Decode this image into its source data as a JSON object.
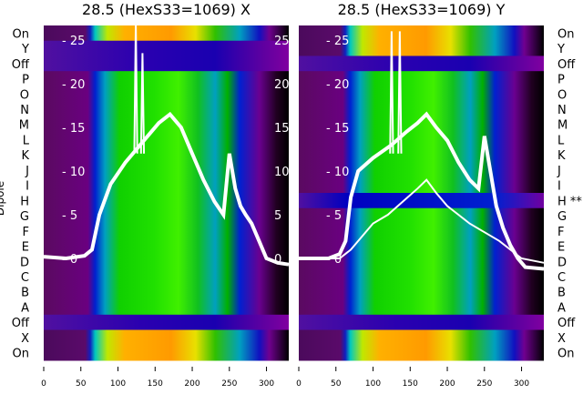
{
  "chart_data": [
    {
      "type": "heatmap",
      "title": "28.5 (HexS33=1069) X",
      "ylabel": "Dipole",
      "row_labels": [
        "On",
        "Y",
        "Off",
        "P",
        "O",
        "N",
        "M",
        "L",
        "K",
        "J",
        "I",
        "H",
        "G",
        "F",
        "E",
        "D",
        "C",
        "B",
        "A",
        "Off",
        "X",
        "On"
      ],
      "xlim": [
        0,
        330
      ],
      "xticks": [
        0,
        50,
        100,
        150,
        200,
        250,
        300
      ],
      "overlay_yticks": [
        0,
        5,
        10,
        15,
        20,
        25
      ],
      "overlay_ylim": [
        -1,
        27
      ],
      "overlay_series": [
        {
          "name": "profile",
          "x": [
            0,
            30,
            55,
            65,
            75,
            90,
            110,
            125,
            140,
            155,
            170,
            185,
            200,
            215,
            230,
            242,
            250,
            258,
            265,
            272,
            280,
            290,
            300,
            315,
            330
          ],
          "y": [
            0.2,
            0,
            0.3,
            1,
            5,
            8.5,
            11,
            12.5,
            14,
            15.5,
            16.5,
            15,
            12,
            9,
            6.5,
            5,
            12,
            8,
            6,
            5,
            4,
            2,
            0,
            -0.5,
            -0.7
          ],
          "spikes": [
            [
              124,
              27
            ],
            [
              133,
              23.5
            ]
          ]
        }
      ]
    },
    {
      "type": "heatmap",
      "title": "28.5 (HexS33=1069) Y",
      "row_labels": [
        "On",
        "Y",
        "Off",
        "P",
        "O",
        "N",
        "M",
        "L",
        "K",
        "J",
        "I",
        "H **",
        "G",
        "F",
        "E",
        "D",
        "C",
        "B",
        "A",
        "Off",
        "X",
        "On"
      ],
      "xlim": [
        0,
        330
      ],
      "xticks": [
        0,
        50,
        100,
        150,
        200,
        250,
        300
      ],
      "overlay_yticks": [
        0,
        5,
        10,
        15,
        20,
        25
      ],
      "overlay_ylim": [
        -1,
        27
      ],
      "overlay_series": [
        {
          "name": "profile",
          "x": [
            0,
            40,
            55,
            63,
            70,
            80,
            100,
            125,
            145,
            160,
            172,
            185,
            200,
            215,
            230,
            242,
            250,
            258,
            266,
            275,
            285,
            295,
            305,
            330
          ],
          "y": [
            0,
            0,
            0.5,
            2,
            7,
            10,
            11.5,
            13,
            14.5,
            15.5,
            16.5,
            15,
            13.5,
            11,
            9,
            8,
            14,
            10,
            6,
            3.5,
            1.5,
            0,
            -1,
            -1.2
          ],
          "spikes": [
            [
              125,
              26
            ],
            [
              136,
              26
            ]
          ]
        },
        {
          "name": "profile-2",
          "x": [
            0,
            55,
            70,
            85,
            100,
            120,
            140,
            160,
            172,
            185,
            200,
            215,
            230,
            250,
            270,
            285,
            300,
            330
          ],
          "y": [
            0,
            0,
            1,
            2.5,
            4,
            5,
            6.5,
            8,
            9,
            7.5,
            6,
            5,
            4,
            3,
            2,
            1,
            0,
            -0.5
          ]
        }
      ]
    }
  ]
}
